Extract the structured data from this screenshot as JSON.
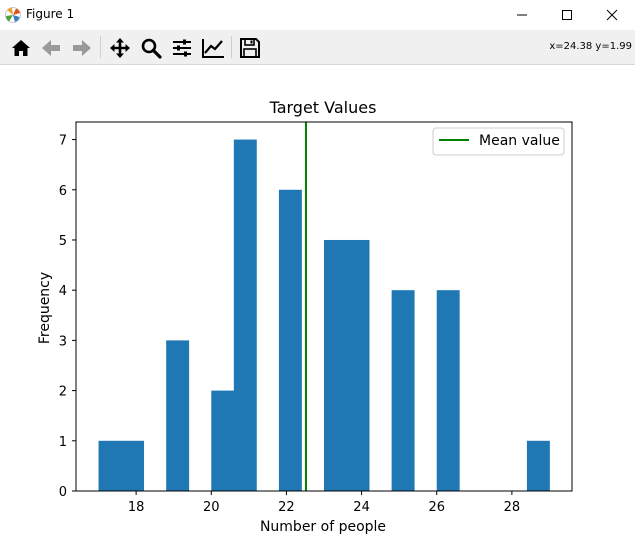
{
  "window": {
    "title": "Figure 1",
    "icons": {
      "app": "matplotlib-logo-icon",
      "minimize": "minimize-icon",
      "maximize": "maximize-icon",
      "close": "close-icon"
    }
  },
  "toolbar": {
    "items": [
      {
        "name": "home",
        "icon": "home-icon"
      },
      {
        "name": "back",
        "icon": "arrow-left-icon"
      },
      {
        "name": "forward",
        "icon": "arrow-right-icon"
      },
      {
        "name": "pan",
        "icon": "move-icon"
      },
      {
        "name": "zoom",
        "icon": "zoom-icon"
      },
      {
        "name": "subplots",
        "icon": "sliders-icon"
      },
      {
        "name": "customize",
        "icon": "line-chart-icon"
      },
      {
        "name": "save",
        "icon": "save-icon"
      }
    ],
    "coords": "x=24.38 y=1.99"
  },
  "chart_data": {
    "type": "bar",
    "title": "Target Values",
    "xlabel": "Number of people",
    "ylabel": "Frequency",
    "xlim": [
      16.4,
      29.6
    ],
    "ylim": [
      0,
      7.35
    ],
    "xticks": [
      18,
      20,
      22,
      24,
      26,
      28
    ],
    "yticks": [
      0,
      1,
      2,
      3,
      4,
      5,
      6,
      7
    ],
    "bar_color": "#1f77b4",
    "bars": [
      {
        "x0": 17.0,
        "x1": 17.6,
        "value": 1
      },
      {
        "x0": 17.6,
        "x1": 18.2,
        "value": 1
      },
      {
        "x0": 18.8,
        "x1": 19.4,
        "value": 3
      },
      {
        "x0": 20.0,
        "x1": 20.6,
        "value": 2
      },
      {
        "x0": 20.6,
        "x1": 21.2,
        "value": 7
      },
      {
        "x0": 21.8,
        "x1": 22.4,
        "value": 6
      },
      {
        "x0": 23.0,
        "x1": 23.6,
        "value": 5
      },
      {
        "x0": 23.6,
        "x1": 24.2,
        "value": 5
      },
      {
        "x0": 24.8,
        "x1": 25.4,
        "value": 4
      },
      {
        "x0": 26.0,
        "x1": 26.6,
        "value": 4
      },
      {
        "x0": 28.4,
        "x1": 29.0,
        "value": 1
      }
    ],
    "mean_line": {
      "x": 22.52,
      "color": "#008000",
      "label": "Mean value"
    },
    "legend": {
      "position": "top-right",
      "entries": [
        "Mean value"
      ]
    },
    "grid": false
  }
}
